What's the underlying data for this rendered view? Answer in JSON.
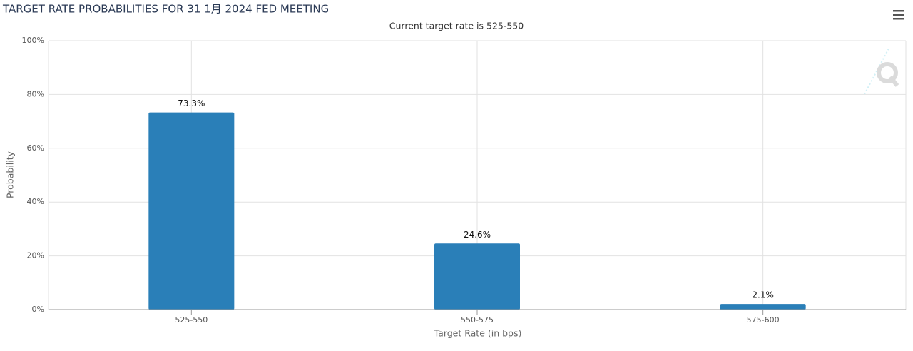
{
  "chart_data": {
    "type": "bar",
    "title": "TARGET RATE PROBABILITIES FOR 31 1月 2024 FED MEETING",
    "subtitle": "Current target rate is 525-550",
    "x_label": "Target Rate (in bps)",
    "y_label": "Probability",
    "categories": [
      "525-550",
      "550-575",
      "575-600"
    ],
    "values": [
      73.3,
      24.6,
      2.1
    ],
    "value_labels": [
      "73.3%",
      "24.6%",
      "2.1%"
    ],
    "color": "#2a7fb8",
    "ylim": [
      0,
      100
    ],
    "yticks": [
      {
        "value": 0,
        "label": "0%"
      },
      {
        "value": 20,
        "label": "20%"
      },
      {
        "value": 40,
        "label": "40%"
      },
      {
        "value": 60,
        "label": "60%"
      },
      {
        "value": 80,
        "label": "80%"
      },
      {
        "value": 100,
        "label": "100%"
      }
    ],
    "grid": true
  }
}
